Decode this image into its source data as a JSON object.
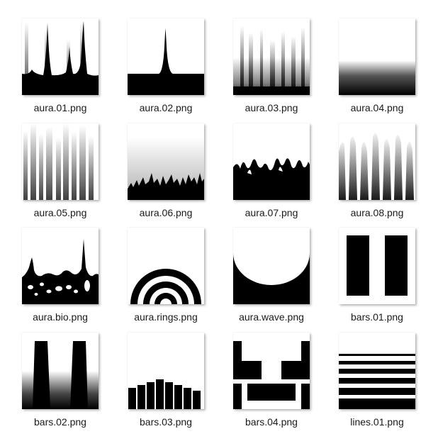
{
  "files": [
    {
      "name": "aura.01.png",
      "icon": "aura-01-thumbnail"
    },
    {
      "name": "aura.02.png",
      "icon": "aura-02-thumbnail"
    },
    {
      "name": "aura.03.png",
      "icon": "aura-03-thumbnail"
    },
    {
      "name": "aura.04.png",
      "icon": "aura-04-thumbnail"
    },
    {
      "name": "aura.05.png",
      "icon": "aura-05-thumbnail"
    },
    {
      "name": "aura.06.png",
      "icon": "aura-06-thumbnail"
    },
    {
      "name": "aura.07.png",
      "icon": "aura-07-thumbnail"
    },
    {
      "name": "aura.08.png",
      "icon": "aura-08-thumbnail"
    },
    {
      "name": "aura.bio.png",
      "icon": "aura-bio-thumbnail"
    },
    {
      "name": "aura.rings.png",
      "icon": "aura-rings-thumbnail"
    },
    {
      "name": "aura.wave.png",
      "icon": "aura-wave-thumbnail"
    },
    {
      "name": "bars.01.png",
      "icon": "bars-01-thumbnail"
    },
    {
      "name": "bars.02.png",
      "icon": "bars-02-thumbnail"
    },
    {
      "name": "bars.03.png",
      "icon": "bars-03-thumbnail"
    },
    {
      "name": "bars.04.png",
      "icon": "bars-04-thumbnail"
    },
    {
      "name": "lines.01.png",
      "icon": "lines-01-thumbnail"
    }
  ]
}
